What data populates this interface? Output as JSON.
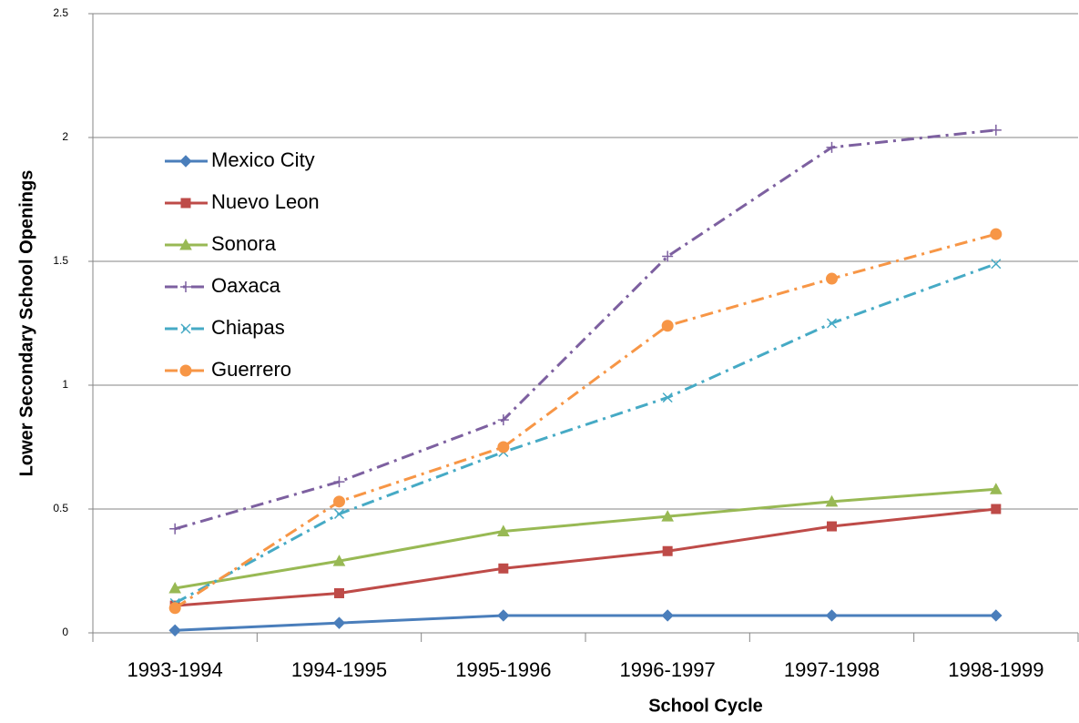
{
  "chart_data": {
    "type": "line",
    "x_label": "School Cycle",
    "y_label": "Lower Secondary School Openings",
    "categories": [
      "1993-1994",
      "1994-1995",
      "1995-1996",
      "1996-1997",
      "1997-1998",
      "1998-1999"
    ],
    "ylim": [
      0,
      2.5
    ],
    "yticks": [
      0,
      0.5,
      1,
      1.5,
      2,
      2.5
    ],
    "grid": true,
    "series": [
      {
        "name": "Mexico City",
        "color": "#4a7ebb",
        "marker": "diamond",
        "dash": "solid",
        "values": [
          0.01,
          0.04,
          0.07,
          0.07,
          0.07,
          0.07
        ]
      },
      {
        "name": "Nuevo Leon",
        "color": "#be4b48",
        "marker": "square",
        "dash": "solid",
        "values": [
          0.11,
          0.16,
          0.26,
          0.33,
          0.43,
          0.5
        ]
      },
      {
        "name": "Sonora",
        "color": "#98b954",
        "marker": "triangle",
        "dash": "solid",
        "values": [
          0.18,
          0.29,
          0.41,
          0.47,
          0.53,
          0.58
        ]
      },
      {
        "name": "Oaxaca",
        "color": "#7d60a0",
        "marker": "plus",
        "dash": "dashdot",
        "values": [
          0.42,
          0.61,
          0.86,
          1.52,
          1.96,
          2.03
        ]
      },
      {
        "name": "Chiapas",
        "color": "#46aac5",
        "marker": "x",
        "dash": "dashdot",
        "values": [
          0.12,
          0.48,
          0.73,
          0.95,
          1.25,
          1.49
        ]
      },
      {
        "name": "Guerrero",
        "color": "#f79646",
        "marker": "circle",
        "dash": "dashdot",
        "values": [
          0.1,
          0.53,
          0.75,
          1.24,
          1.43,
          1.61
        ]
      }
    ]
  }
}
